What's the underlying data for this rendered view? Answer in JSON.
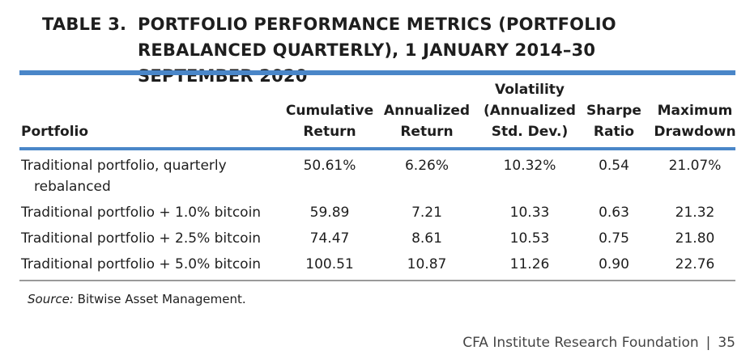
{
  "table": {
    "label": "TABLE 3.",
    "title": "PORTFOLIO PERFORMANCE METRICS (PORTFOLIO REBALANCED QUARTERLY), 1 JANUARY 2014–30 SEPTEMBER 2020",
    "headers": {
      "portfolio": "Portfolio",
      "cumulative_return": "Cumulative\nReturn",
      "annualized_return": "Annualized\nReturn",
      "volatility": "Volatility\n(Annualized\nStd. Dev.)",
      "sharpe_ratio": "Sharpe\nRatio",
      "max_drawdown": "Maximum\nDrawdown"
    },
    "rows": [
      {
        "portfolio_line1": "Traditional portfolio, quarterly",
        "portfolio_line2": "rebalanced",
        "cumulative_return": "50.61%",
        "annualized_return": "6.26%",
        "volatility": "10.32%",
        "sharpe_ratio": "0.54",
        "max_drawdown": "21.07%"
      },
      {
        "portfolio": "Traditional portfolio + 1.0% bitcoin",
        "cumulative_return": "59.89",
        "annualized_return": "7.21",
        "volatility": "10.33",
        "sharpe_ratio": "0.63",
        "max_drawdown": "21.32"
      },
      {
        "portfolio": "Traditional portfolio + 2.5% bitcoin",
        "cumulative_return": "74.47",
        "annualized_return": "8.61",
        "volatility": "10.53",
        "sharpe_ratio": "0.75",
        "max_drawdown": "21.80"
      },
      {
        "portfolio": "Traditional portfolio + 5.0% bitcoin",
        "cumulative_return": "100.51",
        "annualized_return": "10.87",
        "volatility": "11.26",
        "sharpe_ratio": "0.90",
        "max_drawdown": "22.76"
      }
    ]
  },
  "source": {
    "label": "Source:",
    "text": " Bitwise Asset Management."
  },
  "footer": {
    "publisher": "CFA Institute Research Foundation",
    "separator": "|",
    "page_number": "35"
  },
  "colors": {
    "rule_accent": "#4a86c8",
    "rule_bottom": "#9a9a9a",
    "text": "#1e1e1e"
  }
}
